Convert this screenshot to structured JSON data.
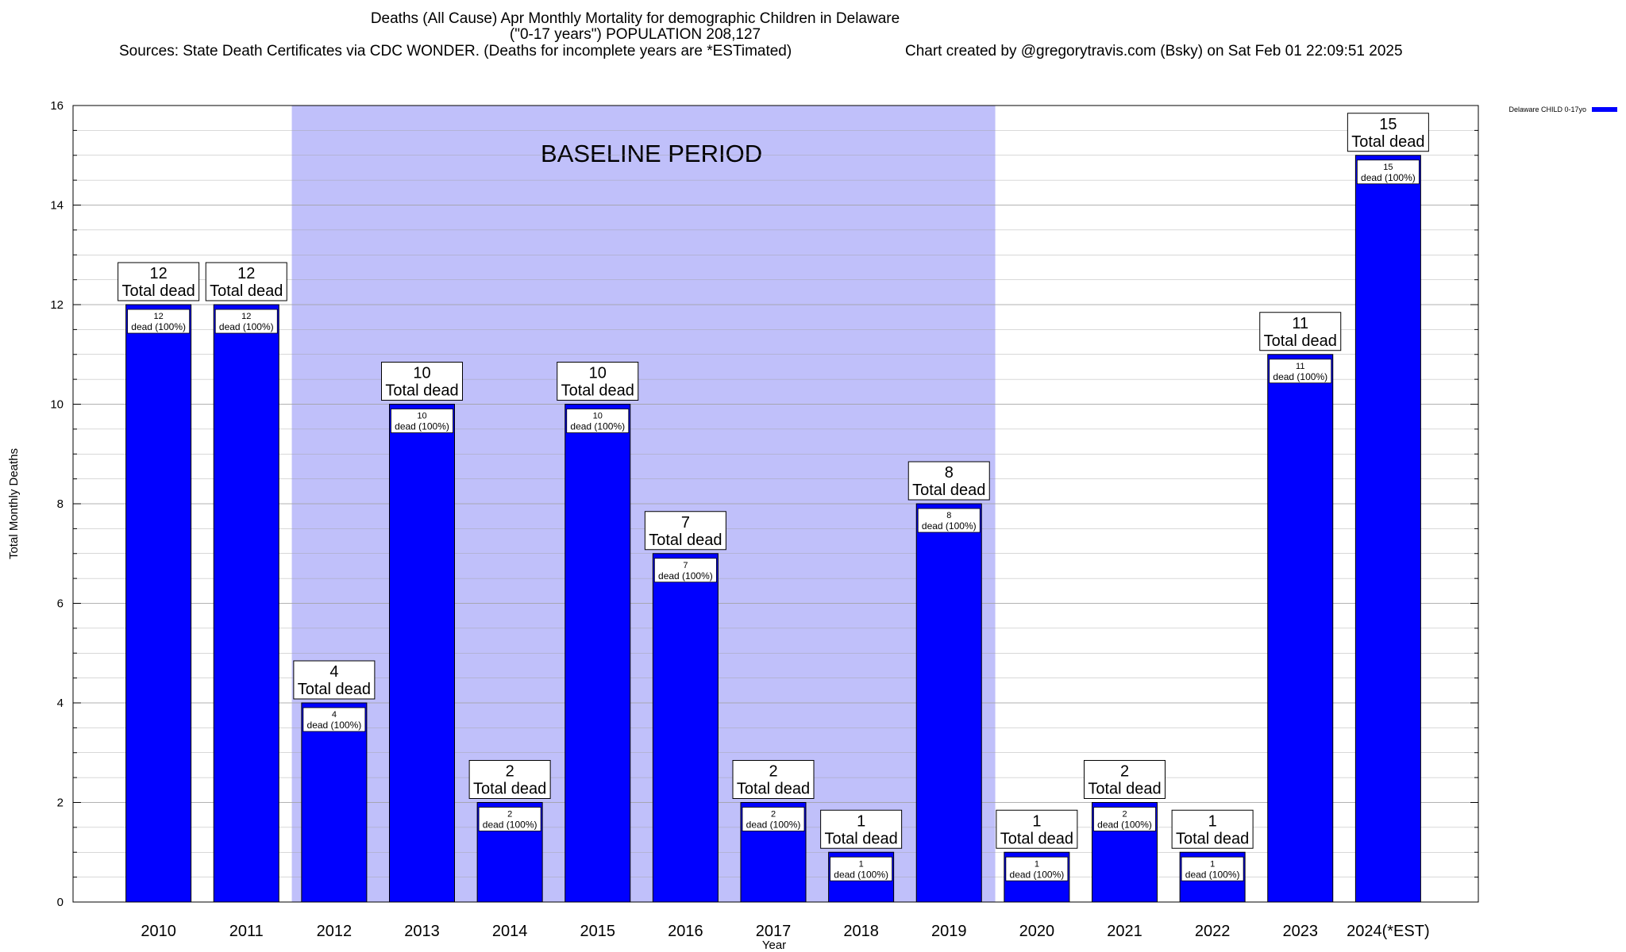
{
  "chart_data": {
    "type": "bar",
    "title": "Deaths (All Cause) Apr Monthly Mortality for demographic Children in Delaware",
    "subtitle": "(\"0-17 years\") POPULATION 208,127",
    "sources": "Sources: State Death Certificates via CDC WONDER. (Deaths for incomplete years are *ESTimated)",
    "credit": "Chart created by @gregorytravis.com (Bsky) on Sat Feb 01 22:09:51 2025",
    "xlabel": "Year",
    "ylabel": "Total Monthly Deaths",
    "ylim": [
      0,
      16
    ],
    "yticks": [
      0,
      2,
      4,
      6,
      8,
      10,
      12,
      14,
      16
    ],
    "categories": [
      "2010",
      "2011",
      "2012",
      "2013",
      "2014",
      "2015",
      "2016",
      "2017",
      "2018",
      "2019",
      "2020",
      "2021",
      "2022",
      "2023",
      "2024(*EST)"
    ],
    "series": [
      {
        "name": "Delaware CHILD 0-17yo",
        "color": "#0000ff",
        "values": [
          12,
          12,
          4,
          10,
          2,
          10,
          7,
          2,
          1,
          8,
          1,
          2,
          1,
          11,
          15
        ]
      }
    ],
    "top_label_suffix": "Total dead",
    "inner_label_suffix": "dead (100%)",
    "baseline": {
      "label": "BASELINE PERIOD",
      "start": "2012",
      "end": "2019",
      "color": "#c0c0fa"
    },
    "grid": true,
    "legend_position": "top-right"
  }
}
